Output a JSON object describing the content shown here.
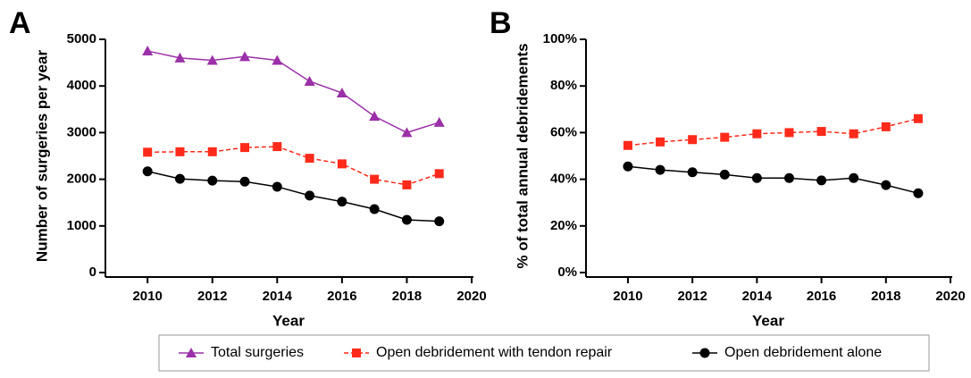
{
  "chart_data": [
    {
      "type": "line",
      "panel": "A",
      "x_label": "Year",
      "y_label": "Number of surgeries per year",
      "x": [
        2010,
        2011,
        2012,
        2013,
        2014,
        2015,
        2016,
        2017,
        2018,
        2019
      ],
      "xlim": [
        2008.7,
        2020
      ],
      "xticks": [
        2010,
        2012,
        2014,
        2016,
        2018,
        2020
      ],
      "ylim": [
        0,
        5000
      ],
      "yticks": [
        0,
        1000,
        2000,
        3000,
        4000,
        5000
      ],
      "series": [
        {
          "name": "Total surgeries",
          "color": "#9b30a8",
          "marker": "triangle",
          "dashed": false,
          "values": [
            4750,
            4600,
            4550,
            4630,
            4550,
            4100,
            3850,
            3350,
            3000,
            3220
          ]
        },
        {
          "name": "Open debridement with tendon repair",
          "color": "#ff2a1a",
          "marker": "square",
          "dashed": true,
          "values": [
            2580,
            2590,
            2590,
            2680,
            2700,
            2450,
            2330,
            2000,
            1880,
            2120
          ]
        },
        {
          "name": "Open debridement alone",
          "color": "#000000",
          "marker": "circle",
          "dashed": false,
          "values": [
            2170,
            2010,
            1970,
            1950,
            1840,
            1650,
            1520,
            1360,
            1130,
            1100
          ]
        }
      ]
    },
    {
      "type": "line",
      "panel": "B",
      "x_label": "Year",
      "y_label": "% of total annual debridements",
      "x": [
        2010,
        2011,
        2012,
        2013,
        2014,
        2015,
        2016,
        2017,
        2018,
        2019
      ],
      "xlim": [
        2008.7,
        2020
      ],
      "xticks": [
        2010,
        2012,
        2014,
        2016,
        2018,
        2020
      ],
      "ylim": [
        0,
        100
      ],
      "yticks": [
        {
          "value": 0,
          "label": "0%"
        },
        {
          "value": 20,
          "label": "20%"
        },
        {
          "value": 40,
          "label": "40%"
        },
        {
          "value": 60,
          "label": "60%"
        },
        {
          "value": 80,
          "label": "80%"
        },
        {
          "value": 100,
          "label": "100%"
        }
      ],
      "series": [
        {
          "color": "#ff2a1a",
          "marker": "square",
          "dashed": true,
          "values": [
            54.5,
            56,
            57,
            58,
            59.5,
            60,
            60.5,
            59.5,
            62.5,
            66
          ]
        },
        {
          "color": "#000000",
          "marker": "circle",
          "dashed": false,
          "values": [
            45.5,
            44,
            43,
            42,
            40.5,
            40.5,
            39.5,
            40.5,
            37.5,
            34
          ]
        }
      ]
    }
  ]
}
